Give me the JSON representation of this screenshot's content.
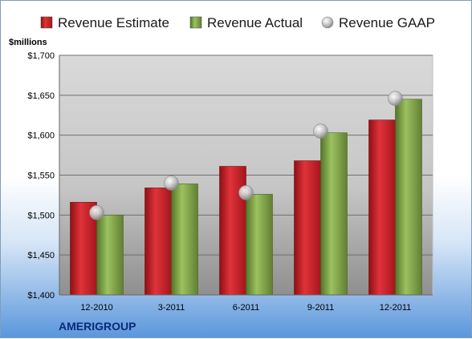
{
  "chart_data": {
    "type": "bar",
    "categories": [
      "12-2010",
      "3-2011",
      "6-2011",
      "9-2011",
      "12-2011"
    ],
    "series": [
      {
        "name": "Revenue Estimate",
        "kind": "bar",
        "color": "#d9262c",
        "values": [
          1516,
          1534,
          1561,
          1568,
          1619
        ]
      },
      {
        "name": "Revenue Actual",
        "kind": "bar",
        "color": "#8ab04f",
        "values": [
          1500,
          1539,
          1526,
          1603,
          1645
        ]
      },
      {
        "name": "Revenue GAAP",
        "kind": "marker",
        "color": "#c0c0c0",
        "values": [
          1503,
          1540,
          1528,
          1605,
          1646
        ]
      }
    ],
    "ylabel": "$millions",
    "ylim": [
      1400,
      1700
    ],
    "yticks": [
      1400,
      1450,
      1500,
      1550,
      1600,
      1650,
      1700
    ],
    "ytick_labels": [
      "$1,400",
      "$1,450",
      "$1,500",
      "$1,550",
      "$1,600",
      "$1,650",
      "$1,700"
    ],
    "grid": true,
    "legend_position": "top",
    "company": "AMERIGROUP"
  }
}
